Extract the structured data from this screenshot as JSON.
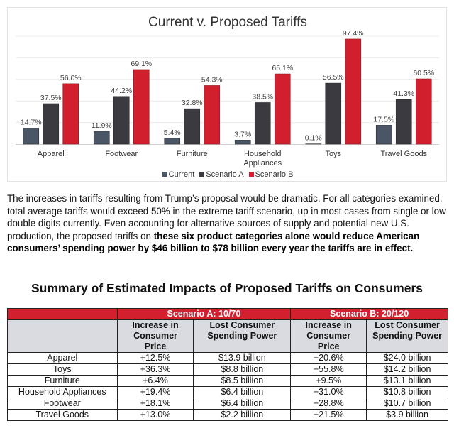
{
  "chart_data": {
    "type": "bar",
    "title": "Current v. Proposed Tariffs",
    "xlabel": "",
    "ylabel": "",
    "ylim": [
      0,
      100
    ],
    "grid": true,
    "legend_position": "bottom",
    "categories": [
      "Apparel",
      "Footwear",
      "Furniture",
      "Household Appliances",
      "Toys",
      "Travel Goods"
    ],
    "category_lines": [
      [
        "Apparel"
      ],
      [
        "Footwear"
      ],
      [
        "Furniture"
      ],
      [
        "Household",
        "Appliances"
      ],
      [
        "Toys"
      ],
      [
        "Travel Goods"
      ]
    ],
    "series": [
      {
        "name": "Current",
        "color": "#4a5566",
        "values": [
          14.7,
          11.9,
          5.4,
          3.7,
          0.1,
          17.5
        ],
        "labels": [
          "14.7%",
          "11.9%",
          "5.4%",
          "3.7%",
          "0.1%",
          "17.5%"
        ]
      },
      {
        "name": "Scenario A",
        "color": "#3a3a40",
        "values": [
          37.5,
          44.2,
          32.8,
          38.5,
          56.5,
          41.3
        ],
        "labels": [
          "37.5%",
          "44.2%",
          "32.8%",
          "38.5%",
          "56.5%",
          "41.3%"
        ]
      },
      {
        "name": "Scenario B",
        "color": "#d21f2e",
        "values": [
          56.0,
          69.1,
          54.3,
          65.1,
          97.4,
          60.5
        ],
        "labels": [
          "56.0%",
          "69.1%",
          "54.3%",
          "65.1%",
          "97.4%",
          "60.5%"
        ]
      }
    ]
  },
  "paragraph": {
    "normal": "The increases in tariffs resulting from Trump’s proposal would be dramatic. For all categories examined, total average tariffs would exceed 50% in the extreme tariff scenario, up in most cases from single or low double digits currently. Even accounting for alternative sources of supply and potential new U.S. production, the proposed tariffs on ",
    "bold": "these six product categories alone would reduce American consumers’ spending power by $46 billion to $78 billion every year the tariffs are in effect."
  },
  "table": {
    "title": "Summary of Estimated Impacts of Proposed Tariffs on Consumers",
    "scenario_a": "Scenario A: 10/70",
    "scenario_b": "Scenario B: 20/120",
    "col_increase": "Increase in Consumer Price",
    "col_lost": "Lost Consumer Spending Power",
    "rows": [
      {
        "category": "Apparel",
        "a_increase": "+12.5%",
        "a_lost": "$13.9 billion",
        "b_increase": "+20.6%",
        "b_lost": "$24.0 billion"
      },
      {
        "category": "Toys",
        "a_increase": "+36.3%",
        "a_lost": "$8.8 billion",
        "b_increase": "+55.8%",
        "b_lost": "$14.2 billion"
      },
      {
        "category": "Furniture",
        "a_increase": "+6.4%",
        "a_lost": "$8.5 billion",
        "b_increase": "+9.5%",
        "b_lost": "$13.1 billion"
      },
      {
        "category": "Household Appliances",
        "a_increase": "+19.4%",
        "a_lost": "$6.4 billion",
        "b_increase": "+31.0%",
        "b_lost": "$10.8 billion"
      },
      {
        "category": "Footwear",
        "a_increase": "+18.1%",
        "a_lost": "$6.4 billion",
        "b_increase": "+28.8%",
        "b_lost": "$10.7 billion"
      },
      {
        "category": "Travel Goods",
        "a_increase": "+13.0%",
        "a_lost": "$2.2 billion",
        "b_increase": "+21.5%",
        "b_lost": "$3.9 billion"
      }
    ]
  }
}
